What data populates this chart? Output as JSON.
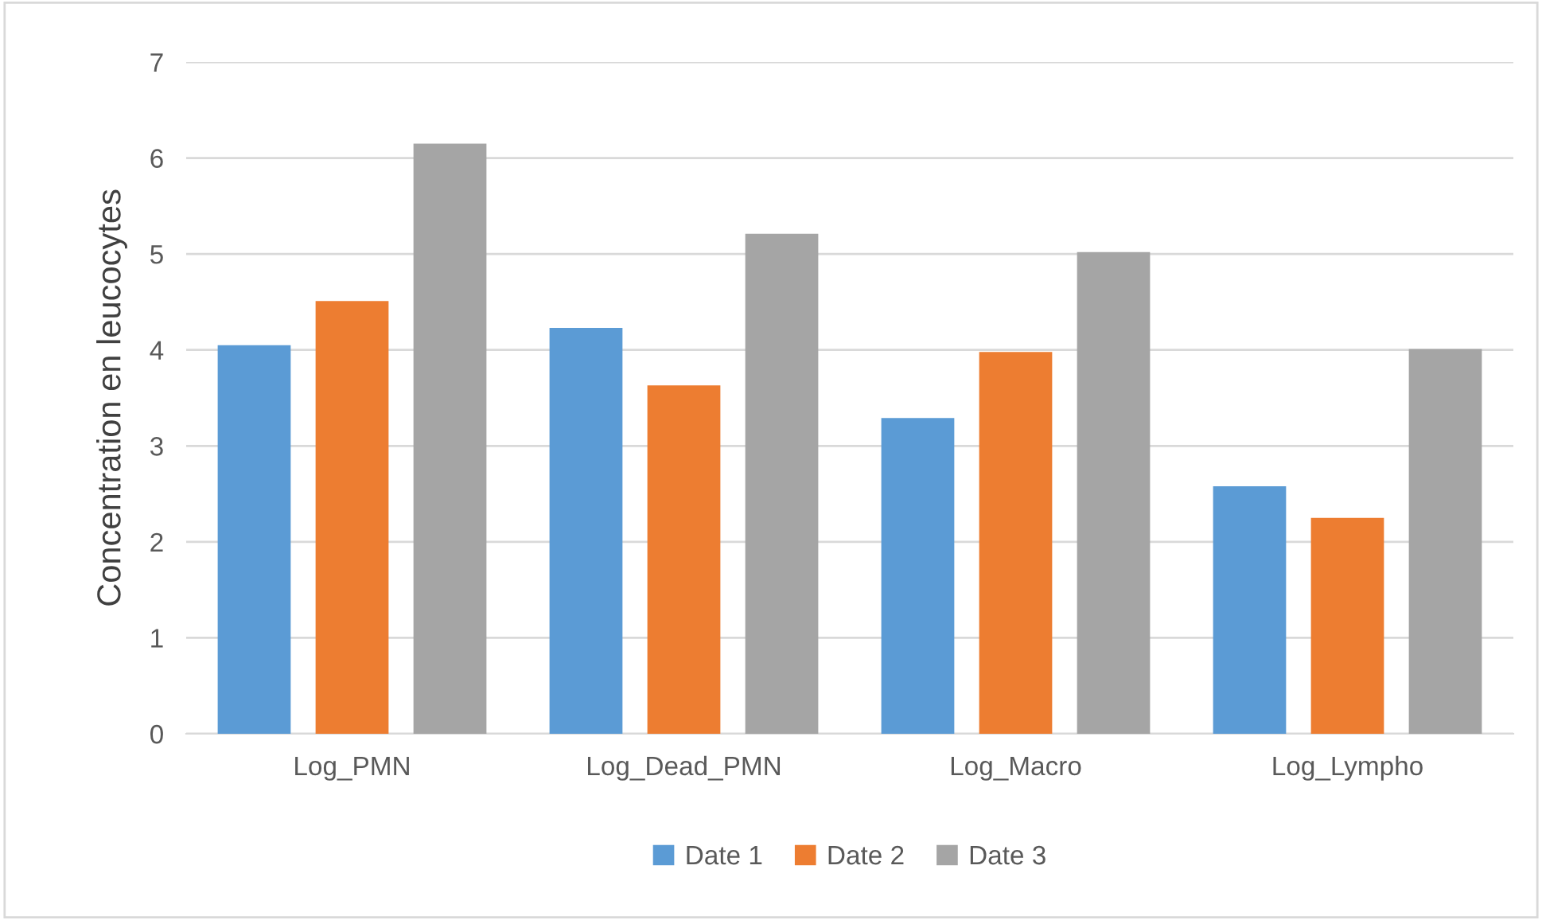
{
  "chart_data": {
    "type": "bar",
    "ylabel": "Concentration en leucocytes",
    "categories": [
      "Log_PMN",
      "Log_Dead_PMN",
      "Log_Macro",
      "Log_Lympho"
    ],
    "series": [
      {
        "name": "Date 1",
        "color": "#5b9bd5",
        "values": [
          4.05,
          4.23,
          3.29,
          2.58
        ]
      },
      {
        "name": "Date 2",
        "color": "#ed7d31",
        "values": [
          4.51,
          3.63,
          3.98,
          2.25
        ]
      },
      {
        "name": "Date 3",
        "color": "#a5a5a5",
        "values": [
          6.15,
          5.21,
          5.02,
          4.01
        ]
      }
    ],
    "ylim": [
      0,
      7
    ],
    "yticks": [
      0,
      1,
      2,
      3,
      4,
      5,
      6,
      7
    ],
    "grid": "y",
    "legend": "bottom"
  }
}
